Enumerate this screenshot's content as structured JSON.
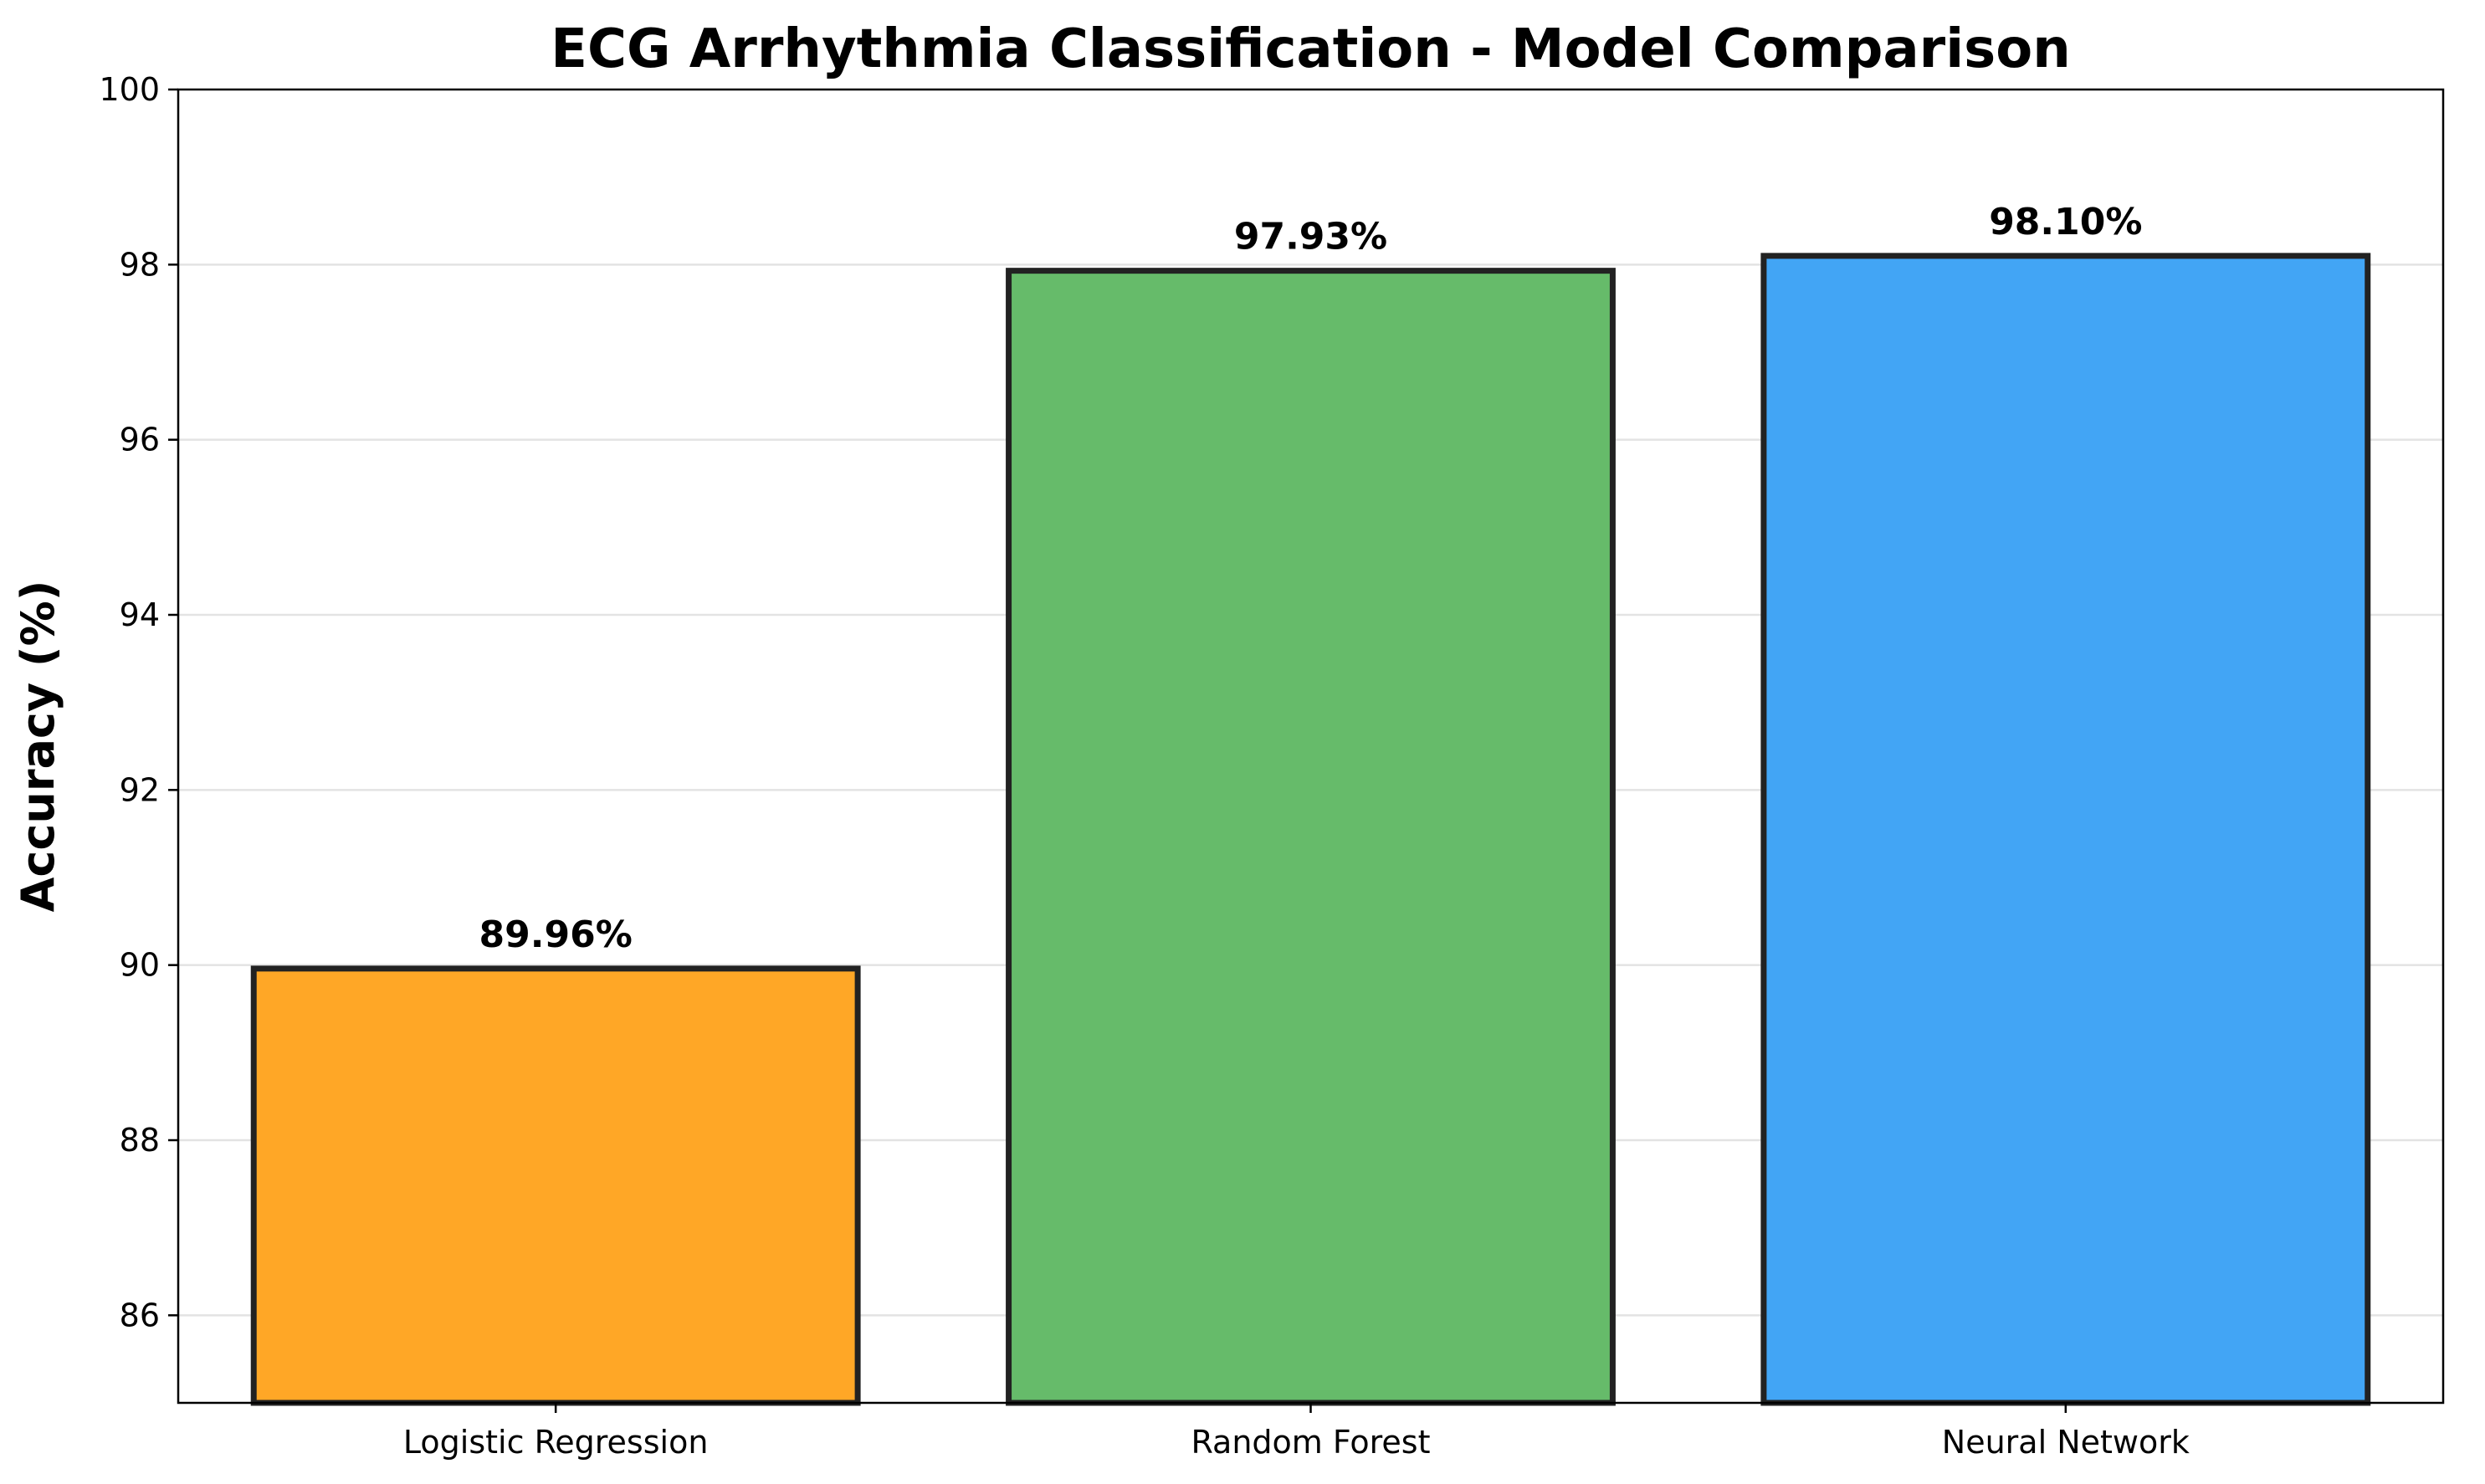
{
  "chart_data": {
    "type": "bar",
    "title": "ECG Arrhythmia Classification - Model Comparison",
    "xlabel": "",
    "ylabel": "Accuracy (%)",
    "categories": [
      "Logistic Regression",
      "Random Forest",
      "Neural Network"
    ],
    "values": [
      89.96,
      97.93,
      98.1
    ],
    "value_labels": [
      "89.96%",
      "97.93%",
      "98.10%"
    ],
    "colors": [
      "#FFA726",
      "#66BB6A",
      "#42A5F5"
    ],
    "edge_color": "#222222",
    "ylim": [
      85,
      100
    ],
    "yticks": [
      86,
      88,
      90,
      92,
      94,
      96,
      98,
      100
    ],
    "grid": true,
    "grid_axis": "y"
  }
}
